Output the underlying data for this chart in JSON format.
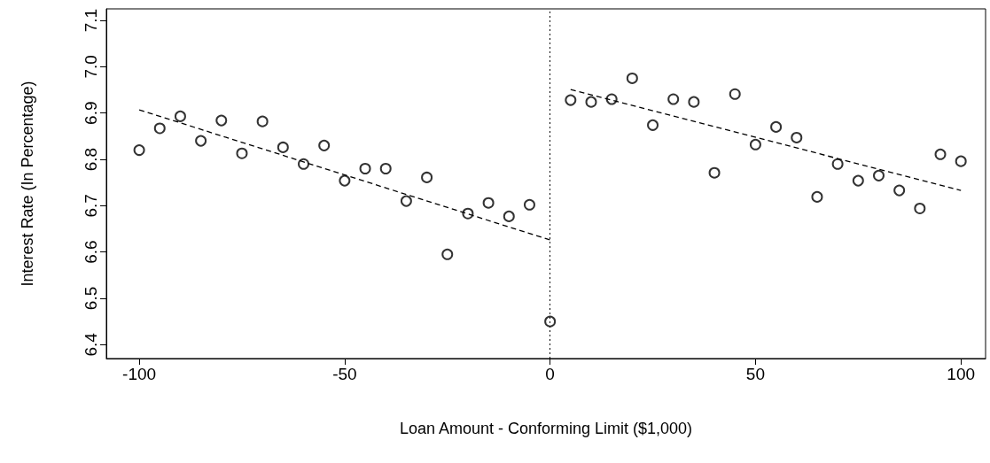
{
  "chart_data": {
    "type": "scatter",
    "xlabel": "Loan Amount - Conforming Limit ($1,000)",
    "ylabel": "Interest Rate (In Percentage)",
    "xlim": [
      -108,
      106
    ],
    "ylim": [
      6.37,
      7.125
    ],
    "xticks": [
      -100,
      -50,
      0,
      50,
      100
    ],
    "yticks": [
      {
        "value": 6.4,
        "label": "6.4"
      },
      {
        "value": 6.5,
        "label": "6.5"
      },
      {
        "value": 6.6,
        "label": "6.6"
      },
      {
        "value": 6.7,
        "label": "6.7"
      },
      {
        "value": 6.8,
        "label": "6.8"
      },
      {
        "value": 6.9,
        "label": "6.9"
      },
      {
        "value": 7.0,
        "label": "7.0"
      },
      {
        "value": 7.1,
        "label": "7.1"
      }
    ],
    "grid": false,
    "series": [
      {
        "marker": "circle",
        "color": "#000000",
        "x": [
          -100,
          -95,
          -90,
          -85,
          -80,
          -75,
          -70,
          -65,
          -60,
          -55,
          -50,
          -45,
          -40,
          -35,
          -30,
          -25,
          -20,
          -15,
          -10,
          -5,
          0,
          5,
          10,
          15,
          20,
          25,
          30,
          35,
          40,
          45,
          50,
          55,
          60,
          65,
          70,
          75,
          80,
          85,
          90,
          95,
          100
        ],
        "values": [
          6.82,
          6.867,
          6.893,
          6.84,
          6.884,
          6.813,
          6.882,
          6.826,
          6.79,
          6.83,
          6.754,
          6.78,
          6.78,
          6.71,
          6.761,
          6.595,
          6.683,
          6.706,
          6.677,
          6.702,
          6.45,
          6.928,
          6.924,
          6.93,
          6.975,
          6.874,
          6.93,
          6.924,
          6.771,
          6.941,
          6.832,
          6.87,
          6.847,
          6.719,
          6.79,
          6.754,
          6.765,
          6.733,
          6.694,
          6.811,
          6.796
        ]
      },
      {
        "type": "line",
        "line_style": "dashed",
        "marker": "none",
        "color": "#000000",
        "x": [
          -100,
          0
        ],
        "values": [
          6.907,
          6.626
        ]
      },
      {
        "type": "line",
        "line_style": "dashed",
        "marker": "none",
        "color": "#000000",
        "x": [
          5,
          100
        ],
        "values": [
          6.951,
          6.733
        ]
      }
    ],
    "ref_lines": [
      {
        "axis": "x",
        "value": 0,
        "line_style": "dotted",
        "color": "#000000"
      }
    ]
  }
}
